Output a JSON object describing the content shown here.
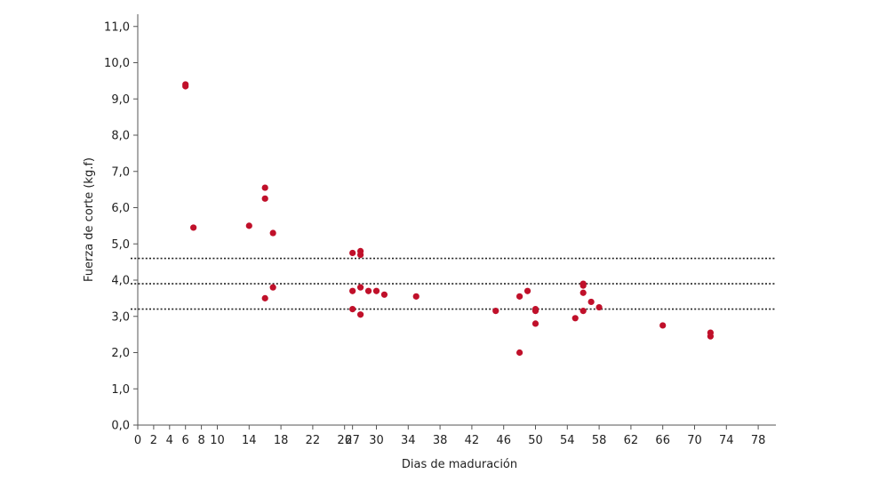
{
  "chart_data": {
    "type": "scatter",
    "xlabel": "Dias de maduración",
    "ylabel": "Fuerza de corte (kg.f)",
    "xlim": [
      0,
      80
    ],
    "ylim": [
      0,
      11.5
    ],
    "x_ticks": [
      0,
      2,
      4,
      6,
      8,
      10,
      14,
      18,
      22,
      26,
      27,
      30,
      34,
      38,
      42,
      46,
      50,
      54,
      58,
      62,
      66,
      70,
      74,
      78
    ],
    "x_tick_labels": [
      "0",
      "2",
      "4",
      "6",
      "8",
      "10",
      "14",
      "18",
      "22",
      "26",
      "27",
      "30",
      "34",
      "38",
      "42",
      "46",
      "50",
      "54",
      "58",
      "62",
      "66",
      "70",
      "74",
      "78"
    ],
    "y_ticks": [
      0,
      1,
      2,
      3,
      4,
      5,
      6,
      7,
      8,
      9,
      10,
      11
    ],
    "y_tick_labels": [
      "0,0",
      "1,0",
      "2,0",
      "3,0",
      "4,0",
      "5,0",
      "6,0",
      "7,0",
      "8,0",
      "9,0",
      "10,0",
      "11,0"
    ],
    "reference_lines": [
      4.6,
      3.9,
      3.2
    ],
    "grid": false,
    "marker_color": "#c0102a",
    "reference_line_color": "#222222",
    "points": [
      {
        "x": 6,
        "y": 9.4
      },
      {
        "x": 6,
        "y": 9.35
      },
      {
        "x": 7,
        "y": 5.45
      },
      {
        "x": 14,
        "y": 5.5
      },
      {
        "x": 16,
        "y": 6.55
      },
      {
        "x": 16,
        "y": 6.25
      },
      {
        "x": 16,
        "y": 3.5
      },
      {
        "x": 17,
        "y": 5.3
      },
      {
        "x": 17,
        "y": 3.8
      },
      {
        "x": 27,
        "y": 4.75
      },
      {
        "x": 27,
        "y": 3.7
      },
      {
        "x": 27,
        "y": 3.2
      },
      {
        "x": 28,
        "y": 4.8
      },
      {
        "x": 28,
        "y": 4.7
      },
      {
        "x": 28,
        "y": 3.8
      },
      {
        "x": 28,
        "y": 3.05
      },
      {
        "x": 29,
        "y": 3.7
      },
      {
        "x": 30,
        "y": 3.7
      },
      {
        "x": 31,
        "y": 3.6
      },
      {
        "x": 35,
        "y": 3.55
      },
      {
        "x": 45,
        "y": 3.15
      },
      {
        "x": 48,
        "y": 3.55
      },
      {
        "x": 48,
        "y": 2.0
      },
      {
        "x": 49,
        "y": 3.7
      },
      {
        "x": 50,
        "y": 3.2
      },
      {
        "x": 50,
        "y": 3.15
      },
      {
        "x": 50,
        "y": 2.8
      },
      {
        "x": 55,
        "y": 2.95
      },
      {
        "x": 56,
        "y": 3.9
      },
      {
        "x": 56,
        "y": 3.85
      },
      {
        "x": 56,
        "y": 3.65
      },
      {
        "x": 56,
        "y": 3.15
      },
      {
        "x": 57,
        "y": 3.4
      },
      {
        "x": 58,
        "y": 3.25
      },
      {
        "x": 66,
        "y": 2.75
      },
      {
        "x": 72,
        "y": 2.55
      },
      {
        "x": 72,
        "y": 2.45
      }
    ]
  }
}
